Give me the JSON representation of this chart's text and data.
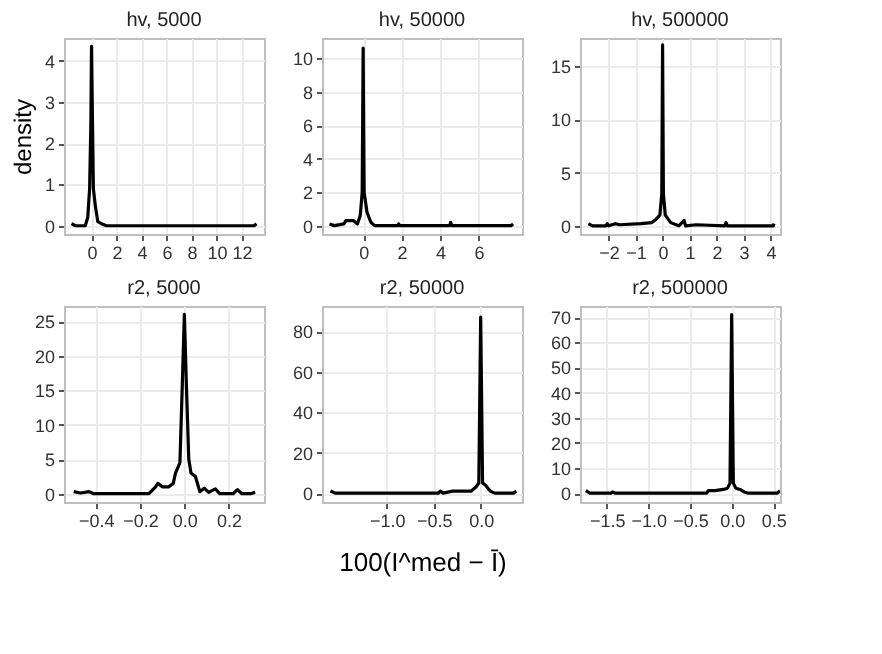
{
  "chart_data": [
    {
      "type": "line",
      "title": "hv,   5000",
      "ylabel": "density",
      "grid": true,
      "color": "#000000",
      "xlim": [
        -2.2,
        13.8
      ],
      "xticks": [
        0,
        2,
        4,
        6,
        8,
        10,
        12
      ],
      "ylim": [
        -0.2,
        4.55
      ],
      "yticks": [
        0,
        1,
        2,
        3,
        4
      ],
      "x": [
        -1.6,
        -1.3,
        -0.5,
        -0.3,
        -0.15,
        -0.05,
        0,
        0.08,
        0.15,
        0.3,
        0.5,
        0.8,
        1.2,
        13.0,
        13.2
      ],
      "values": [
        0.05,
        0,
        0,
        0.2,
        0.9,
        2.5,
        4.35,
        2.5,
        0.9,
        0.5,
        0.1,
        0.05,
        0,
        0,
        0.05
      ]
    },
    {
      "type": "line",
      "title": "hv,  50000",
      "grid": true,
      "color": "#000000",
      "xlim": [
        -2.14,
        8.26
      ],
      "xticks": [
        0,
        2,
        4,
        6
      ],
      "ylim": [
        -0.5,
        11.2
      ],
      "yticks": [
        0,
        2,
        4,
        6,
        8,
        10
      ],
      "x": [
        -1.75,
        -1.5,
        -1,
        -0.9,
        -0.5,
        -0.3,
        -0.15,
        -0.05,
        0,
        0.05,
        0.2,
        0.4,
        0.6,
        1.8,
        1.85,
        1.9,
        4.5,
        4.55,
        4.6,
        7.7,
        7.8
      ],
      "values": [
        0.1,
        0,
        0.1,
        0.3,
        0.3,
        0.1,
        0.6,
        2,
        10.6,
        2,
        0.8,
        0.2,
        0,
        0,
        0.1,
        0,
        0,
        0.2,
        0,
        0,
        0.1
      ]
    },
    {
      "type": "line",
      "title": "hv, 500000",
      "grid": true,
      "color": "#000000",
      "xlim": [
        -3.06,
        4.35
      ],
      "xticks": [
        -2,
        -1,
        0,
        1,
        2,
        3,
        4
      ],
      "ylim": [
        -0.77,
        17.65
      ],
      "yticks": [
        0,
        5,
        10,
        15
      ],
      "x": [
        -2.75,
        -2.6,
        -2.1,
        -2.05,
        -2,
        -1.75,
        -1.6,
        -0.8,
        -0.4,
        -0.25,
        -0.1,
        -0.03,
        0,
        0.03,
        0.1,
        0.3,
        0.6,
        0.8,
        0.85,
        1.25,
        2.3,
        2.35,
        2.4,
        4.1,
        4.13
      ],
      "values": [
        0.2,
        0,
        0,
        0.2,
        0,
        0.2,
        0.1,
        0.2,
        0.3,
        0.6,
        1,
        3,
        17,
        3,
        1,
        0.3,
        0,
        0.5,
        0,
        0.1,
        0,
        0.3,
        0,
        0,
        0.2
      ]
    },
    {
      "type": "line",
      "title": "r2,   5000",
      "grid": true,
      "color": "#000000",
      "xlim": [
        -0.544,
        0.36
      ],
      "xticks": [
        {
          "value": -0.4,
          "label": "−0.4"
        },
        {
          "value": -0.2,
          "label": "−0.2"
        },
        {
          "value": 0,
          "label": "0.0"
        },
        0.2
      ],
      "ylim": [
        -1.2,
        27.2
      ],
      "yticks": [
        0,
        5,
        10,
        15,
        20,
        25
      ],
      "x": [
        -0.5,
        -0.47,
        -0.43,
        -0.41,
        -0.16,
        -0.13,
        -0.12,
        -0.1,
        -0.07,
        -0.05,
        -0.04,
        -0.02,
        -0.01,
        0,
        0.01,
        0.02,
        0.03,
        0.05,
        0.07,
        0.09,
        0.11,
        0.14,
        0.16,
        0.22,
        0.24,
        0.26,
        0.3,
        0.32
      ],
      "values": [
        0.3,
        0.1,
        0.3,
        0,
        0,
        1,
        1.5,
        1,
        1,
        1.5,
        3,
        4.5,
        15,
        26,
        15,
        5,
        3,
        2.5,
        0.3,
        0.8,
        0.2,
        0.7,
        0,
        0,
        0.6,
        0,
        0,
        0.2
      ]
    },
    {
      "type": "line",
      "title": "r2,  50000",
      "xlabel": "100(I^med − Ī)",
      "grid": true,
      "color": "#000000",
      "xlim": [
        -1.69,
        0.44
      ],
      "xticks": [
        {
          "value": -1.0,
          "label": "−1.0"
        },
        {
          "value": -0.5,
          "label": "−0.5"
        },
        {
          "value": 0,
          "label": "0.0"
        }
      ],
      "ylim": [
        -4.4,
        92.5
      ],
      "yticks": [
        0,
        20,
        40,
        60,
        80
      ],
      "x": [
        -1.6,
        -1.55,
        -0.45,
        -0.43,
        -0.4,
        -0.3,
        -0.2,
        -0.1,
        -0.05,
        -0.02,
        0,
        0.02,
        0.05,
        0.1,
        0.15,
        0.35,
        0.38
      ],
      "values": [
        1,
        0,
        0,
        1,
        0,
        1,
        1,
        1,
        3,
        5,
        87,
        5,
        4,
        1,
        0,
        0,
        1
      ]
    },
    {
      "type": "line",
      "title": "r2, 500000",
      "grid": true,
      "color": "#000000",
      "xlim": [
        -1.82,
        0.58
      ],
      "xticks": [
        {
          "value": -1.5,
          "label": "−1.5"
        },
        {
          "value": -1.0,
          "label": "−1.0"
        },
        {
          "value": -0.5,
          "label": "−0.5"
        },
        {
          "value": 0,
          "label": "0.0"
        },
        0.5
      ],
      "ylim": [
        -3.5,
        74.4
      ],
      "yticks": [
        0,
        10,
        20,
        30,
        40,
        50,
        60,
        70
      ],
      "x": [
        -1.75,
        -1.7,
        -1.45,
        -1.43,
        -1.4,
        -0.3,
        -0.28,
        -0.2,
        -0.1,
        -0.05,
        -0.02,
        0,
        0.02,
        0.05,
        0.1,
        0.15,
        0.2,
        0.55,
        0.58
      ],
      "values": [
        1,
        0,
        0,
        0.5,
        0,
        0,
        1,
        1,
        1.5,
        2,
        4,
        71,
        4,
        2,
        1.5,
        0.5,
        0,
        0,
        1
      ]
    }
  ]
}
